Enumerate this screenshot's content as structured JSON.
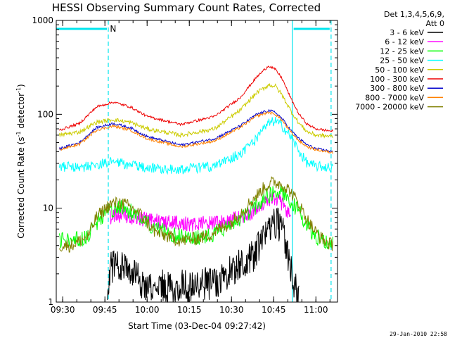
{
  "chart_data": {
    "type": "line",
    "title": "HESSI Observing Summary Count Rates, Corrected",
    "ylabel": "Corrected Count Rate (s",
    "ylabel_sup": "-1",
    "ylabel_tail": " detector",
    "ylabel_sup2": "-1",
    "ylabel_close": ")",
    "xlabel": "Start Time (03-Dec-04 09:27:42)",
    "footer": "29-Jan-2010 22:58",
    "scale": "log",
    "ylim": [
      1,
      1000
    ],
    "xlim": [
      9.4617,
      11.128
    ],
    "ytick_values": [
      1,
      10,
      100,
      1000
    ],
    "ytick_labels": [
      "1",
      "10",
      "100",
      "1000"
    ],
    "xtick_values": [
      9.5,
      9.75,
      10.0,
      10.25,
      10.5,
      10.75,
      11.0
    ],
    "xtick_labels": [
      "09:30",
      "09:45",
      "10:00",
      "10:15",
      "10:30",
      "10:45",
      "11:00"
    ],
    "legend": {
      "placement": "top-right",
      "header": [
        "Det 1,3,4,5,6,9,",
        "Att 0"
      ]
    },
    "night_markers": {
      "vertical_lines_x": [
        9.77,
        10.86,
        11.09
      ],
      "flag_label": "N",
      "flag_label_x": 9.78
    },
    "series": [
      {
        "name": "3 - 6 keV",
        "color": "#000000",
        "noise": 0.4,
        "x": [
          9.765,
          9.78,
          9.85,
          10.0,
          10.25,
          10.4,
          10.5,
          10.6,
          10.68,
          10.72,
          10.75,
          10.78,
          10.81,
          10.85,
          10.87,
          10.9
        ],
        "y": [
          1.2,
          2.4,
          2.4,
          1.5,
          1.5,
          1.6,
          2.2,
          2.7,
          4.2,
          6.5,
          7.5,
          6.8,
          5.0,
          2.5,
          1.5,
          1.1
        ]
      },
      {
        "name": "6 - 12 keV",
        "color": "#ff00ff",
        "noise": 0.18,
        "x": [
          9.78,
          9.85,
          10.0,
          10.25,
          10.45,
          10.6,
          10.68,
          10.72,
          10.75,
          10.78,
          10.82,
          10.85
        ],
        "y": [
          8.0,
          8.5,
          7.5,
          6.8,
          7.0,
          8.5,
          11.0,
          12.5,
          13.0,
          12.0,
          10.0,
          8.5
        ]
      },
      {
        "name": "12 - 25 keV",
        "color": "#00ff00",
        "noise": 0.2,
        "x": [
          9.48,
          9.55,
          9.65,
          9.7,
          9.78,
          9.85,
          9.95,
          10.05,
          10.2,
          10.35,
          10.5,
          10.6,
          10.7,
          10.75,
          10.8,
          10.85,
          10.9,
          10.95,
          11.0,
          11.05,
          11.1
        ],
        "y": [
          4.5,
          4.5,
          4.8,
          7.0,
          9.5,
          10.0,
          8.5,
          6.0,
          5.0,
          5.0,
          6.5,
          9.0,
          13.0,
          15.0,
          14.5,
          12.0,
          9.0,
          6.5,
          5.0,
          4.5,
          4.2
        ]
      },
      {
        "name": "25 - 50 keV",
        "color": "#00ffff",
        "noise": 0.12,
        "x": [
          9.48,
          9.6,
          9.7,
          9.8,
          9.9,
          10.0,
          10.2,
          10.4,
          10.55,
          10.65,
          10.72,
          10.76,
          10.8,
          10.86,
          10.9,
          10.95,
          11.0,
          11.1
        ],
        "y": [
          28.0,
          27.0,
          29.0,
          31.0,
          29.0,
          27.0,
          26.0,
          28.0,
          38.0,
          55.0,
          80.0,
          85.0,
          75.0,
          55.0,
          40.0,
          30.0,
          28.0,
          27.0
        ]
      },
      {
        "name": "50 - 100 keV",
        "color": "#cccc00",
        "noise": 0.05,
        "x": [
          9.48,
          9.6,
          9.7,
          9.8,
          9.9,
          10.0,
          10.2,
          10.4,
          10.55,
          10.65,
          10.72,
          10.76,
          10.8,
          10.85,
          10.9,
          10.95,
          11.0,
          11.1
        ],
        "y": [
          60.0,
          65.0,
          82.0,
          88.0,
          82.0,
          70.0,
          60.0,
          70.0,
          110.0,
          170.0,
          205.0,
          200.0,
          160.0,
          110.0,
          80.0,
          65.0,
          60.0,
          58.0
        ]
      },
      {
        "name": "100 - 300 keV",
        "color": "#ee0000",
        "noise": 0.03,
        "x": [
          9.48,
          9.6,
          9.7,
          9.8,
          9.9,
          10.0,
          10.2,
          10.4,
          10.55,
          10.65,
          10.72,
          10.76,
          10.8,
          10.85,
          10.9,
          10.95,
          11.0,
          11.1
        ],
        "y": [
          68.0,
          80.0,
          120.0,
          135.0,
          120.0,
          95.0,
          78.0,
          95.0,
          150.0,
          250.0,
          330.0,
          300.0,
          240.0,
          150.0,
          100.0,
          78.0,
          70.0,
          66.0
        ]
      },
      {
        "name": "300 - 800 keV",
        "color": "#0000cc",
        "noise": 0.03,
        "x": [
          9.48,
          9.6,
          9.7,
          9.8,
          9.9,
          10.0,
          10.2,
          10.4,
          10.55,
          10.65,
          10.72,
          10.76,
          10.8,
          10.85,
          10.9,
          10.95,
          11.0,
          11.1
        ],
        "y": [
          43.0,
          50.0,
          72.0,
          80.0,
          72.0,
          58.0,
          47.0,
          55.0,
          75.0,
          100.0,
          110.0,
          105.0,
          90.0,
          68.0,
          55.0,
          47.0,
          43.0,
          40.0
        ]
      },
      {
        "name": "800 - 7000 keV",
        "color": "#ff8000",
        "noise": 0.03,
        "x": [
          9.48,
          9.6,
          9.7,
          9.8,
          9.9,
          10.0,
          10.2,
          10.4,
          10.55,
          10.65,
          10.72,
          10.76,
          10.8,
          10.85,
          10.9,
          10.95,
          11.0,
          11.1
        ],
        "y": [
          42.0,
          48.0,
          68.0,
          75.0,
          68.0,
          55.0,
          45.0,
          52.0,
          72.0,
          96.0,
          105.0,
          100.0,
          86.0,
          65.0,
          52.0,
          45.0,
          42.0,
          39.0
        ]
      },
      {
        "name": "7000 - 20000 keV",
        "color": "#808000",
        "noise": 0.16,
        "x": [
          9.48,
          9.55,
          9.65,
          9.7,
          9.78,
          9.85,
          9.95,
          10.05,
          10.2,
          10.35,
          10.5,
          10.6,
          10.7,
          10.75,
          10.8,
          10.85,
          10.9,
          10.95,
          11.0,
          11.05,
          11.1
        ],
        "y": [
          4.0,
          4.0,
          5.0,
          8.0,
          11.0,
          11.5,
          9.0,
          5.5,
          4.5,
          5.0,
          7.0,
          11.0,
          17.0,
          19.0,
          18.0,
          15.0,
          11.0,
          7.5,
          5.5,
          4.5,
          4.0
        ]
      }
    ]
  }
}
